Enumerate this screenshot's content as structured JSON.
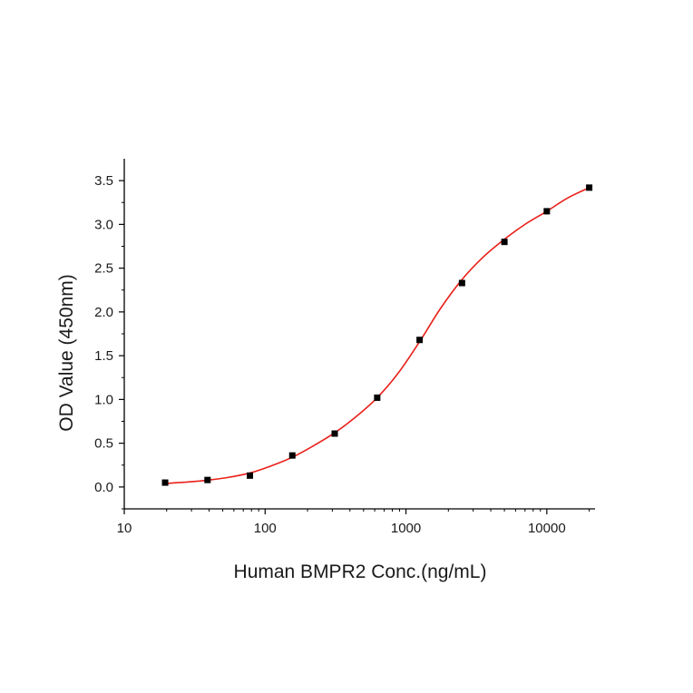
{
  "chart_data": {
    "type": "scatter",
    "title": "",
    "xlabel": "Human BMPR2 Conc.(ng/mL)",
    "ylabel": "OD Value (450nm)",
    "xscale": "log",
    "xlim": [
      10,
      22000
    ],
    "ylim": [
      -0.25,
      3.75
    ],
    "xticks": [
      10,
      100,
      1000,
      10000
    ],
    "xtick_labels": [
      "10",
      "100",
      "1000",
      "10000"
    ],
    "yticks": [
      0.0,
      0.5,
      1.0,
      1.5,
      2.0,
      2.5,
      3.0,
      3.5
    ],
    "ytick_labels": [
      "0.0",
      "0.5",
      "1.0",
      "1.5",
      "2.0",
      "2.5",
      "3.0",
      "3.5"
    ],
    "grid": false,
    "legend": "none",
    "series": [
      {
        "kind": "points",
        "marker": "square",
        "color": "#000000",
        "x": [
          19.5,
          39,
          78,
          156,
          312,
          625,
          1250,
          2500,
          5000,
          10000,
          20000
        ],
        "y": [
          0.05,
          0.08,
          0.13,
          0.36,
          0.61,
          1.02,
          1.68,
          2.33,
          2.8,
          3.15,
          3.42
        ]
      },
      {
        "kind": "fit-curve",
        "color": "#e8201a",
        "x": [
          19.5,
          30,
          40,
          55,
          78,
          110,
          156,
          220,
          312,
          440,
          625,
          880,
          1250,
          1760,
          2500,
          3500,
          5000,
          7000,
          10000,
          14000,
          20000
        ],
        "y": [
          0.04,
          0.06,
          0.08,
          0.11,
          0.16,
          0.24,
          0.34,
          0.47,
          0.62,
          0.8,
          1.02,
          1.3,
          1.66,
          2.04,
          2.37,
          2.62,
          2.83,
          3.0,
          3.15,
          3.3,
          3.42
        ]
      }
    ]
  }
}
